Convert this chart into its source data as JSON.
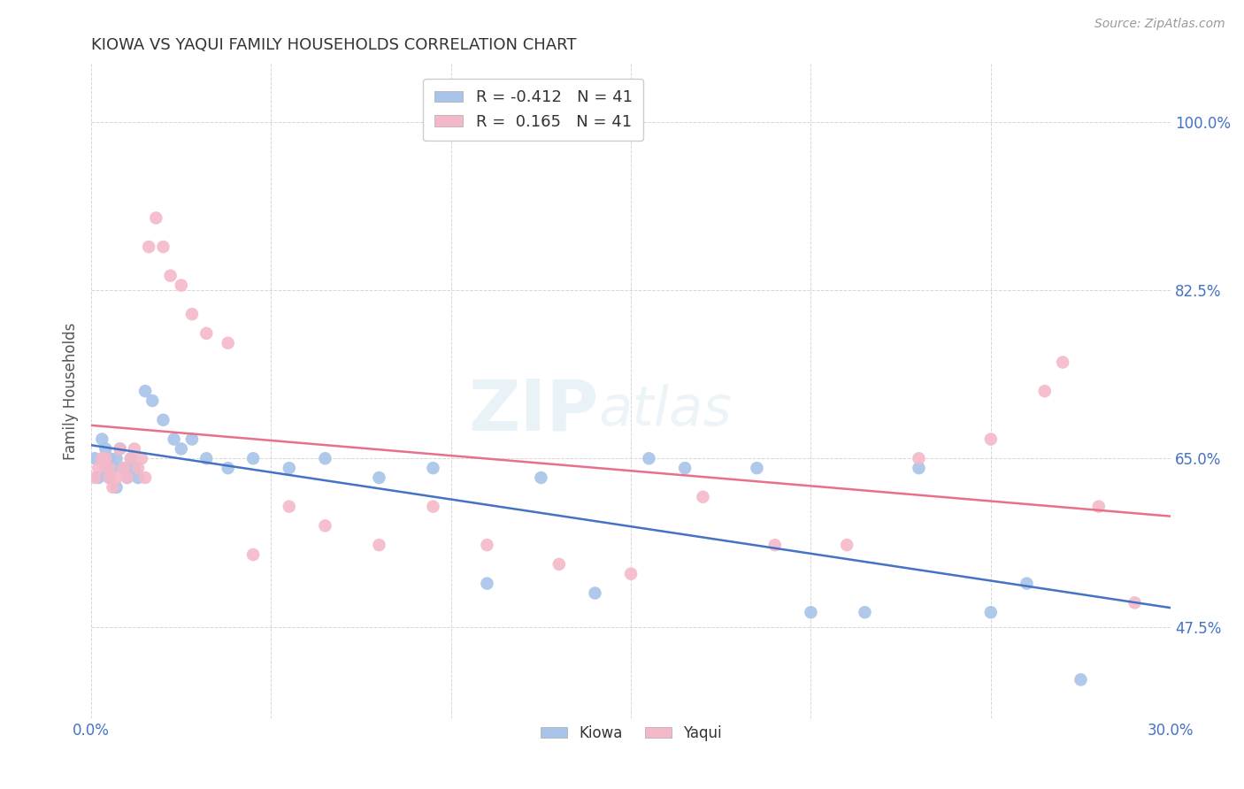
{
  "title": "KIOWA VS YAQUI FAMILY HOUSEHOLDS CORRELATION CHART",
  "source": "Source: ZipAtlas.com",
  "ylabel": "Family Households",
  "ytick_labels": [
    "47.5%",
    "65.0%",
    "82.5%",
    "100.0%"
  ],
  "ytick_values": [
    0.475,
    0.65,
    0.825,
    1.0
  ],
  "xlim": [
    0.0,
    0.3
  ],
  "ylim": [
    0.38,
    1.06
  ],
  "kiowa_color": "#a8c4e8",
  "yaqui_color": "#f5b8c8",
  "kiowa_line_color": "#4472c4",
  "yaqui_line_color": "#e8708a",
  "background_color": "#ffffff",
  "kiowa_x": [
    0.001,
    0.002,
    0.003,
    0.004,
    0.004,
    0.005,
    0.005,
    0.006,
    0.007,
    0.007,
    0.008,
    0.009,
    0.01,
    0.011,
    0.012,
    0.013,
    0.015,
    0.017,
    0.02,
    0.023,
    0.025,
    0.028,
    0.032,
    0.038,
    0.045,
    0.055,
    0.065,
    0.08,
    0.095,
    0.11,
    0.125,
    0.14,
    0.155,
    0.165,
    0.185,
    0.2,
    0.215,
    0.23,
    0.25,
    0.26,
    0.275
  ],
  "kiowa_y": [
    0.65,
    0.63,
    0.67,
    0.66,
    0.64,
    0.65,
    0.63,
    0.64,
    0.65,
    0.62,
    0.66,
    0.64,
    0.63,
    0.65,
    0.64,
    0.63,
    0.72,
    0.71,
    0.69,
    0.67,
    0.66,
    0.67,
    0.65,
    0.64,
    0.65,
    0.64,
    0.65,
    0.63,
    0.64,
    0.52,
    0.63,
    0.51,
    0.65,
    0.64,
    0.64,
    0.49,
    0.49,
    0.64,
    0.49,
    0.52,
    0.42
  ],
  "yaqui_x": [
    0.001,
    0.002,
    0.003,
    0.004,
    0.005,
    0.005,
    0.006,
    0.007,
    0.008,
    0.009,
    0.01,
    0.011,
    0.012,
    0.013,
    0.014,
    0.015,
    0.016,
    0.018,
    0.02,
    0.022,
    0.025,
    0.028,
    0.032,
    0.038,
    0.045,
    0.055,
    0.065,
    0.08,
    0.095,
    0.11,
    0.13,
    0.15,
    0.17,
    0.19,
    0.21,
    0.23,
    0.25,
    0.265,
    0.27,
    0.28,
    0.29
  ],
  "yaqui_y": [
    0.63,
    0.64,
    0.65,
    0.65,
    0.63,
    0.64,
    0.62,
    0.63,
    0.66,
    0.64,
    0.63,
    0.65,
    0.66,
    0.64,
    0.65,
    0.63,
    0.87,
    0.9,
    0.87,
    0.84,
    0.83,
    0.8,
    0.78,
    0.77,
    0.55,
    0.6,
    0.58,
    0.56,
    0.6,
    0.56,
    0.54,
    0.53,
    0.61,
    0.56,
    0.56,
    0.65,
    0.67,
    0.72,
    0.75,
    0.6,
    0.5
  ]
}
